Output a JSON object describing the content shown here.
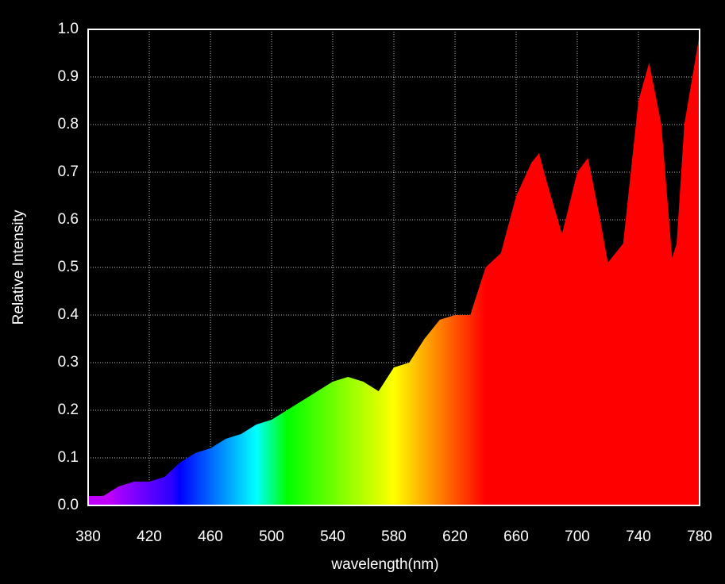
{
  "chart_data": {
    "type": "area",
    "xlabel": "wavelength(nm)",
    "ylabel": "Relative Intensity",
    "x": [
      380,
      390,
      400,
      410,
      420,
      430,
      440,
      450,
      460,
      470,
      480,
      490,
      500,
      510,
      520,
      530,
      540,
      550,
      560,
      570,
      580,
      590,
      600,
      610,
      620,
      630,
      640,
      650,
      660,
      670,
      675,
      680,
      690,
      700,
      707,
      715,
      720,
      730,
      740,
      747,
      755,
      762,
      765,
      770,
      780
    ],
    "values": [
      0.02,
      0.02,
      0.04,
      0.05,
      0.05,
      0.06,
      0.09,
      0.11,
      0.12,
      0.14,
      0.15,
      0.17,
      0.18,
      0.2,
      0.22,
      0.24,
      0.26,
      0.27,
      0.26,
      0.24,
      0.29,
      0.3,
      0.35,
      0.39,
      0.4,
      0.4,
      0.5,
      0.53,
      0.65,
      0.72,
      0.74,
      0.68,
      0.57,
      0.7,
      0.73,
      0.6,
      0.51,
      0.55,
      0.85,
      0.93,
      0.8,
      0.52,
      0.55,
      0.8,
      0.99
    ],
    "color": "spectral",
    "xlim": [
      380,
      780
    ],
    "xticks": [
      380,
      420,
      460,
      500,
      540,
      580,
      620,
      660,
      700,
      740,
      780
    ],
    "ylim": [
      0,
      1
    ],
    "yticks": [
      {
        "value": 0,
        "label": "0.0"
      },
      0.1,
      0.2,
      0.3,
      0.4,
      0.5,
      0.6,
      0.7,
      0.8,
      0.9,
      {
        "value": 1,
        "label": "1.0"
      }
    ],
    "grid": true
  }
}
